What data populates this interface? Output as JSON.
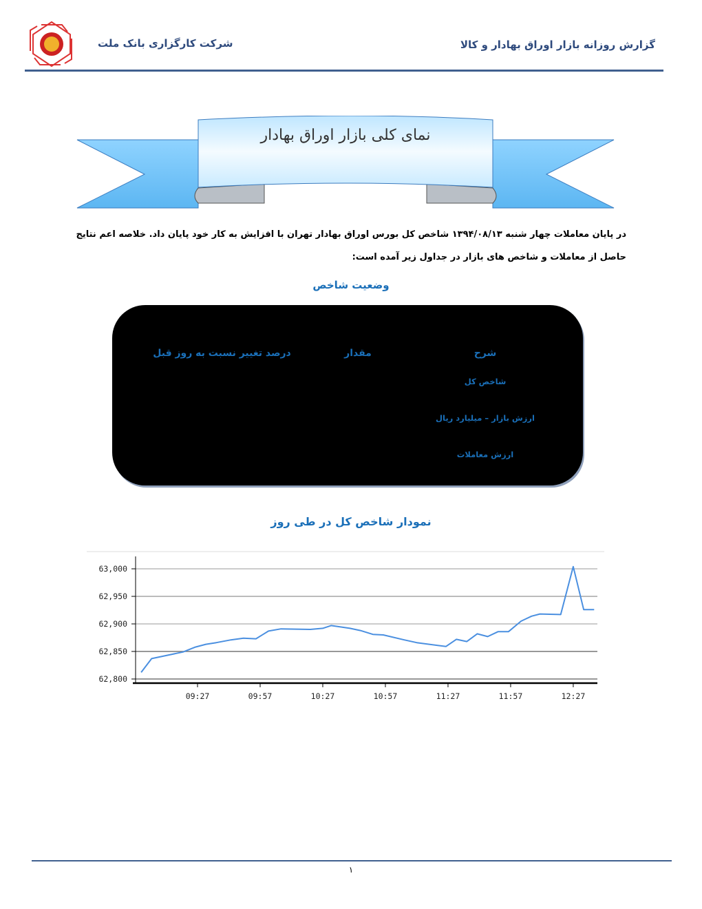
{
  "header": {
    "report_title": "گزارش روزانه بازار اوراق بهادار و کالا",
    "company": "شرکت کارگزاری بانک ملت",
    "logo": "bank-mellat-logo"
  },
  "banner": {
    "title": "نمای کلی بازار اوراق بهادار"
  },
  "intro": {
    "line1": "در پایان معاملات چهار شنبه ۱۳۹۴/۰۸/۱۳ شاخص کل بورس اوراق بهادار تهران با افزایش به کار خود پایان داد. خلاصه اعم نتایج",
    "line2": "حاصل از معاملات و شاخص های بازار در جداول زیر آمده است:"
  },
  "index_status": {
    "title": "وضعیت شاخص",
    "columns": [
      "شرح",
      "مقدار",
      "درصد تغییر نسبت به روز قبل"
    ],
    "rows": [
      "شاخص کل",
      "ارزش بازار – میلیارد ریال",
      "ارزش معاملات"
    ]
  },
  "chart_title": "نمودار شاخص کل در طی روز",
  "chart_data": {
    "type": "line",
    "title": "",
    "xlabel": "",
    "ylabel": "",
    "x_ticks": [
      "09:27",
      "09:57",
      "10:27",
      "10:57",
      "11:27",
      "11:57",
      "12:27"
    ],
    "y_ticks": [
      "62,800",
      "62,850",
      "62,900",
      "62,950",
      "63,000"
    ],
    "ylim": [
      62800,
      63000
    ],
    "xlim": [
      "09:00",
      "12:37"
    ],
    "grid": true,
    "line_color": "#4a8fe0",
    "x": [
      "09:00",
      "09:05",
      "09:20",
      "09:26",
      "09:31",
      "09:36",
      "09:43",
      "09:49",
      "09:55",
      "10:01",
      "10:07",
      "10:21",
      "10:27",
      "10:31",
      "10:40",
      "10:45",
      "10:51",
      "10:56",
      "11:06",
      "11:12",
      "11:26",
      "11:31",
      "11:36",
      "11:41",
      "11:46",
      "11:51",
      "11:56",
      "12:02",
      "12:07",
      "12:11",
      "12:21",
      "12:27",
      "12:32",
      "12:37"
    ],
    "values": [
      62812,
      62837,
      62849,
      62858,
      62863,
      62866,
      62871,
      62874,
      62873,
      62887,
      62891,
      62890,
      62892,
      62897,
      62892,
      62888,
      62881,
      62880,
      62871,
      62866,
      62859,
      62872,
      62868,
      62882,
      62877,
      62886,
      62886,
      62905,
      62914,
      62918,
      62917,
      63004,
      62926,
      62926
    ]
  },
  "footer": {
    "page_number": "۱"
  }
}
